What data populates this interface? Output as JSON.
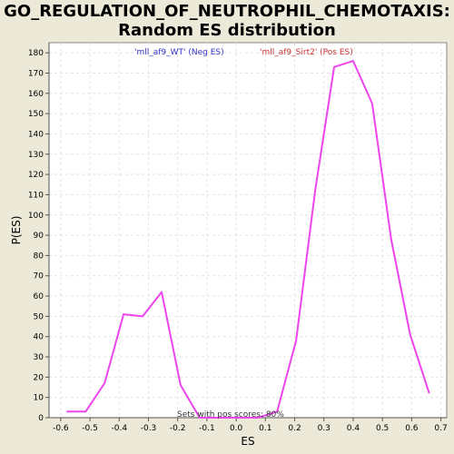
{
  "chart_data": {
    "type": "line",
    "title_line1": "GO_REGULATION_OF_NEUTROPHIL_CHEMOTAXIS:",
    "title_line2": "Random ES distribution",
    "xlabel": "ES",
    "ylabel": "P(ES)",
    "xlim": [
      -0.64,
      0.72
    ],
    "ylim": [
      0,
      185
    ],
    "xticks": [
      -0.6,
      -0.5,
      -0.4,
      -0.3,
      -0.2,
      -0.1,
      0.0,
      0.1,
      0.2,
      0.3,
      0.4,
      0.5,
      0.6,
      0.7
    ],
    "xtick_labels": [
      "-0.6",
      "-0.5",
      "-0.4",
      "-0.3",
      "-0.2",
      "-0.1",
      "0.0",
      "0.1",
      "0.2",
      "0.3",
      "0.4",
      "0.5",
      "0.6",
      "0.7"
    ],
    "yticks": [
      0,
      10,
      20,
      30,
      40,
      50,
      60,
      70,
      80,
      90,
      100,
      110,
      120,
      130,
      140,
      150,
      160,
      170,
      180
    ],
    "grid": true,
    "legend": [
      {
        "label": "'mll_af9_WT' (Neg ES)",
        "color": "#3333cc"
      },
      {
        "label": "'mll_af9_Sirt2' (Pos ES)",
        "color": "#cc3333"
      }
    ],
    "annotation": "Sets with pos scores: 80%",
    "series": [
      {
        "color": "#ee44ee",
        "x": [
          -0.58,
          -0.515,
          -0.45,
          -0.385,
          -0.32,
          -0.255,
          -0.19,
          -0.125,
          -0.06,
          0.005,
          0.075,
          0.14,
          0.205,
          0.27,
          0.335,
          0.4,
          0.465,
          0.53,
          0.595,
          0.66
        ],
        "y": [
          3,
          3,
          17,
          51,
          50,
          62,
          16,
          0,
          0,
          0,
          0,
          3,
          38,
          112,
          173,
          176,
          155,
          88,
          41,
          12
        ]
      }
    ]
  }
}
